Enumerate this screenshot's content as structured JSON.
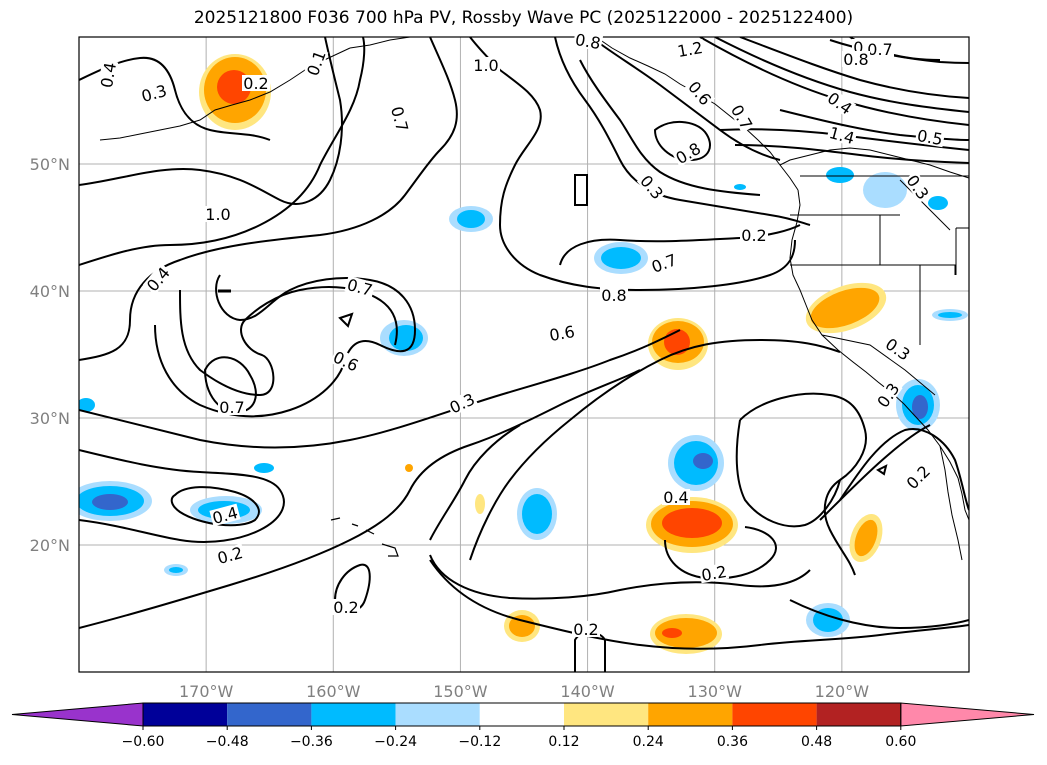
{
  "title": "2025121800 F036 700 hPa PV, Rossby Wave PC (2025122000 - 2025122400)",
  "axes": {
    "lon_labels": [
      "170°W",
      "160°W",
      "150°W",
      "140°W",
      "130°W",
      "120°W"
    ],
    "lat_labels": [
      "50°N",
      "40°N",
      "30°N",
      "20°N"
    ],
    "lon_values": [
      -170,
      -160,
      -150,
      -140,
      -130,
      -120
    ],
    "lat_values": [
      50,
      40,
      30,
      20
    ],
    "lon_range": [
      -180,
      -110
    ],
    "lat_range": [
      10,
      60
    ],
    "grid": true
  },
  "contour_labels": [
    "0.4",
    "0.3",
    "0.2",
    "0.1",
    "0.7",
    "1.0",
    "0.8",
    "1.2",
    "0.6",
    "0.7",
    "0.8",
    "0.3",
    "0.4",
    "1.4",
    "0.5",
    "1.0",
    "0.2",
    "0.7",
    "0.8",
    "0.6",
    "0.4",
    "0.4",
    "0.7",
    "0.6",
    "0.7",
    "0.3",
    "0.3",
    "0.2",
    "0.4",
    "0.2",
    "0.2",
    "0.2",
    "0.3",
    "0.2",
    "0.3",
    "0.6",
    "0.7",
    "0.8"
  ],
  "colorbar": {
    "tick_labels": [
      "−0.60",
      "−0.48",
      "−0.36",
      "−0.24",
      "−0.12",
      "0.12",
      "0.24",
      "0.36",
      "0.48",
      "0.60"
    ],
    "colors": [
      "#9933cc",
      "#000099",
      "#3366cc",
      "#00bbff",
      "#aaddff",
      "#ffffff",
      "#ffe680",
      "#ffa500",
      "#ff4500",
      "#b22222",
      "#ff88aa"
    ],
    "extend": "both"
  }
}
